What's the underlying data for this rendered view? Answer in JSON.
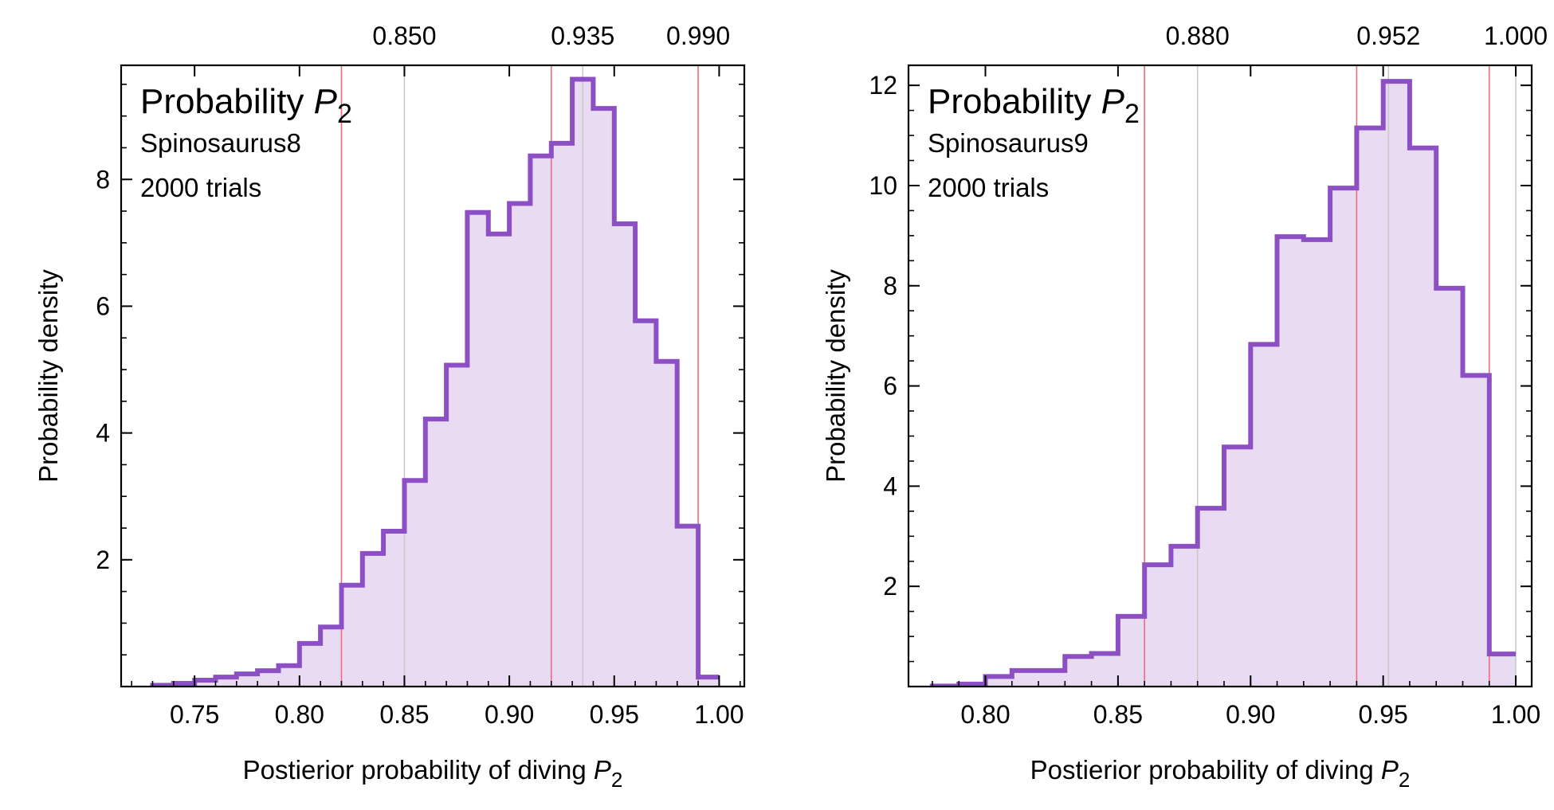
{
  "chart_data": [
    {
      "type": "histogram",
      "annotation": {
        "title_prefix": "Probability ",
        "title_var": "P",
        "title_sub": "2",
        "model": "Spinosaurus8",
        "trials": "2000 trials"
      },
      "xlabel_prefix": "Postierior probability of diving ",
      "xlabel_var": "P",
      "xlabel_sub": "2",
      "ylabel": "Probability density",
      "xlim": [
        0.715,
        1.012
      ],
      "ylim": [
        0,
        9.8
      ],
      "x_ticks": [
        "0.75",
        "0.80",
        "0.85",
        "0.90",
        "0.95",
        "1.00"
      ],
      "y_ticks": [
        "2",
        "4",
        "6",
        "8"
      ],
      "top_ticks": [
        "0.850",
        "0.935",
        "0.990"
      ],
      "top_values": [
        0.85,
        0.935,
        0.99
      ],
      "red_lines": [
        0.82,
        0.92,
        0.99
      ],
      "gray_lines": [
        0.85,
        0.935
      ],
      "bin_edges": [
        0.73,
        0.74,
        0.75,
        0.76,
        0.77,
        0.78,
        0.79,
        0.8,
        0.81,
        0.82,
        0.83,
        0.84,
        0.85,
        0.86,
        0.87,
        0.88,
        0.89,
        0.9,
        0.91,
        0.92,
        0.93,
        0.94,
        0.95,
        0.96,
        0.97,
        0.98,
        0.99,
        1.0
      ],
      "densities": [
        0.02,
        0.05,
        0.1,
        0.15,
        0.2,
        0.25,
        0.33,
        0.68,
        0.94,
        1.6,
        2.1,
        2.45,
        3.25,
        4.22,
        5.07,
        7.48,
        7.14,
        7.62,
        8.37,
        8.57,
        9.58,
        9.12,
        7.3,
        5.77,
        5.13,
        2.53,
        0.15
      ]
    },
    {
      "type": "histogram",
      "annotation": {
        "title_prefix": "Probability ",
        "title_var": "P",
        "title_sub": "2",
        "model": "Spinosaurus9",
        "trials": "2000 trials"
      },
      "xlabel_prefix": "Postierior probability of diving ",
      "xlabel_var": "P",
      "xlabel_sub": "2",
      "ylabel": "Probability density",
      "xlim": [
        0.771,
        1.006
      ],
      "ylim": [
        0,
        12.4
      ],
      "x_ticks": [
        "0.80",
        "0.85",
        "0.90",
        "0.95",
        "1.00"
      ],
      "y_ticks": [
        "2",
        "4",
        "6",
        "8",
        "10",
        "12"
      ],
      "top_ticks": [
        "0.880",
        "0.952",
        "1.000"
      ],
      "top_values": [
        0.88,
        0.952,
        1.0
      ],
      "red_lines": [
        0.86,
        0.94,
        0.99
      ],
      "gray_lines": [
        0.88,
        0.952,
        1.0
      ],
      "bin_edges": [
        0.78,
        0.79,
        0.8,
        0.81,
        0.82,
        0.83,
        0.84,
        0.85,
        0.86,
        0.87,
        0.88,
        0.89,
        0.9,
        0.91,
        0.92,
        0.93,
        0.94,
        0.95,
        0.96,
        0.97,
        0.98,
        0.99,
        1.0
      ],
      "densities": [
        0.01,
        0.05,
        0.2,
        0.32,
        0.32,
        0.6,
        0.66,
        1.4,
        2.43,
        2.8,
        3.56,
        4.78,
        6.83,
        8.98,
        8.92,
        9.95,
        11.15,
        12.08,
        10.75,
        7.95,
        6.21,
        0.65
      ]
    }
  ]
}
